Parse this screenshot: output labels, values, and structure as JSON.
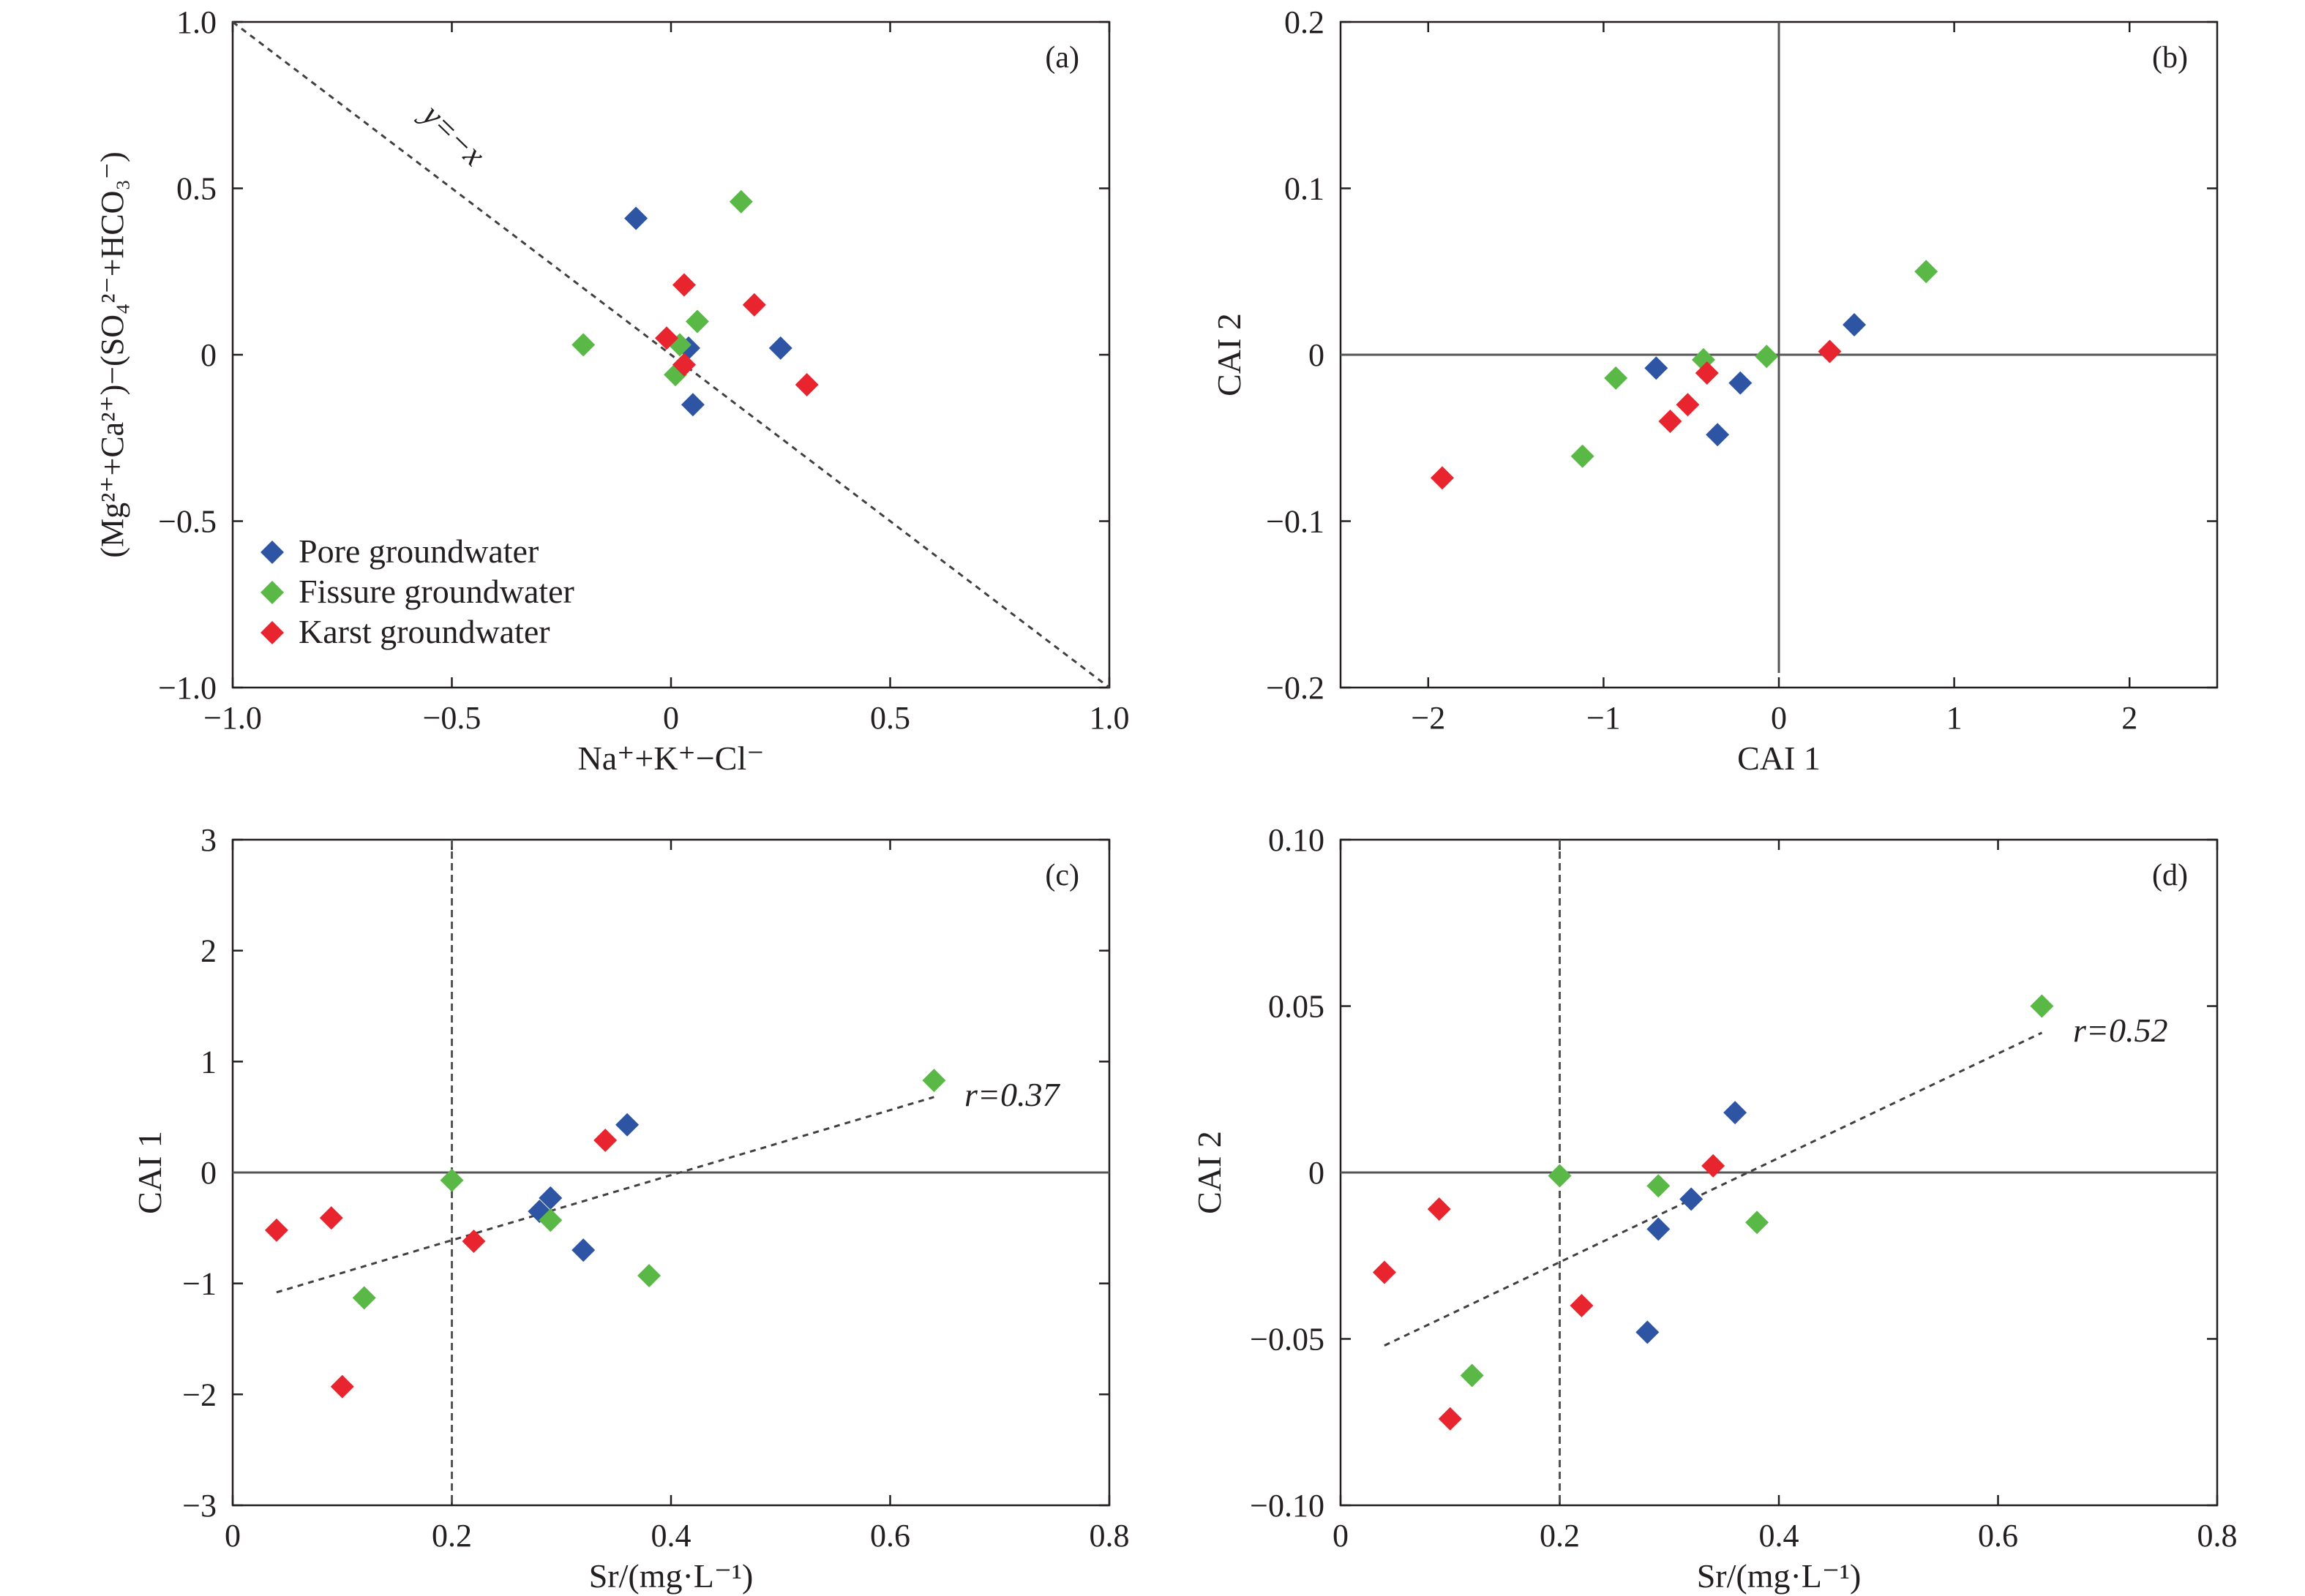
{
  "legend": [
    {
      "label": "Pore groundwater",
      "color": "#2e55a4"
    },
    {
      "label": "Fissure groundwater",
      "color": "#5ab946"
    },
    {
      "label": "Karst groundwater",
      "color": "#e8252e"
    }
  ],
  "panels": {
    "a": {
      "tag": "(a)",
      "xlabel": "Na⁺+K⁺−Cl⁻",
      "ylabel": "(Mg²⁺+Ca²⁺)−(SO₄²⁻+HCO₃⁻)",
      "ref_line_label": "y=−x",
      "xticks": [
        "−1.0",
        "−0.5",
        "0",
        "0.5",
        "1.0"
      ],
      "yticks": [
        "−1.0",
        "−0.5",
        "0",
        "0.5",
        "1.0"
      ]
    },
    "b": {
      "tag": "(b)",
      "xlabel": "CAI 1",
      "ylabel": "CAI 2",
      "xticks": [
        "−2",
        "−1",
        "0",
        "1",
        "2"
      ],
      "yticks": [
        "−0.2",
        "−0.1",
        "0",
        "0.1",
        "0.2"
      ]
    },
    "c": {
      "tag": "(c)",
      "xlabel": "Sr/(mg·L⁻¹)",
      "ylabel": "CAI 1",
      "r_label": "r=0.37",
      "xticks": [
        "0",
        "0.2",
        "0.4",
        "0.6",
        "0.8"
      ],
      "yticks": [
        "−3",
        "−2",
        "−1",
        "0",
        "1",
        "2",
        "3"
      ]
    },
    "d": {
      "tag": "(d)",
      "xlabel": "Sr/(mg·L⁻¹)",
      "ylabel": "CAI 2",
      "r_label": "r=0.52",
      "xticks": [
        "0",
        "0.2",
        "0.4",
        "0.6",
        "0.8"
      ],
      "yticks": [
        "−0.10",
        "−0.05",
        "0",
        "0.05",
        "0.10"
      ]
    }
  },
  "chart_data": [
    {
      "panel": "a",
      "type": "scatter",
      "xlim": [
        -1.0,
        1.0
      ],
      "ylim": [
        -1.0,
        1.0
      ],
      "reference_line": {
        "type": "dashed",
        "from": [
          -1.0,
          1.0
        ],
        "to": [
          1.0,
          -1.0
        ]
      },
      "series": [
        {
          "name": "Pore groundwater",
          "points": [
            [
              -0.08,
              0.41
            ],
            [
              0.04,
              0.02
            ],
            [
              0.05,
              -0.15
            ],
            [
              0.25,
              0.02
            ]
          ]
        },
        {
          "name": "Fissure groundwater",
          "points": [
            [
              -0.2,
              0.03
            ],
            [
              0.16,
              0.46
            ],
            [
              0.06,
              0.1
            ],
            [
              0.01,
              -0.06
            ],
            [
              0.02,
              0.03
            ]
          ]
        },
        {
          "name": "Karst groundwater",
          "points": [
            [
              0.03,
              0.21
            ],
            [
              0.19,
              0.15
            ],
            [
              -0.01,
              0.05
            ],
            [
              0.03,
              -0.03
            ],
            [
              0.31,
              -0.09
            ]
          ]
        }
      ]
    },
    {
      "panel": "b",
      "type": "scatter",
      "xlim": [
        -2.5,
        2.5
      ],
      "ylim": [
        -0.2,
        0.2
      ],
      "axis_lines": {
        "x0": true,
        "y0": true
      },
      "series": [
        {
          "name": "Pore groundwater",
          "points": [
            [
              -0.7,
              -0.008
            ],
            [
              -0.35,
              -0.048
            ],
            [
              -0.22,
              -0.017
            ],
            [
              0.43,
              0.018
            ]
          ]
        },
        {
          "name": "Fissure groundwater",
          "points": [
            [
              -1.12,
              -0.061
            ],
            [
              -0.93,
              -0.014
            ],
            [
              -0.43,
              -0.003
            ],
            [
              -0.07,
              -0.001
            ],
            [
              0.84,
              0.05
            ]
          ]
        },
        {
          "name": "Karst groundwater",
          "points": [
            [
              -1.92,
              -0.074
            ],
            [
              -0.62,
              -0.04
            ],
            [
              -0.52,
              -0.03
            ],
            [
              -0.41,
              -0.011
            ],
            [
              0.29,
              0.002
            ]
          ]
        }
      ]
    },
    {
      "panel": "c",
      "type": "scatter",
      "xlim": [
        0,
        0.8
      ],
      "ylim": [
        -3,
        3
      ],
      "vline": 0.2,
      "hline": 0,
      "fit_line": {
        "from": [
          0.04,
          -1.08
        ],
        "to": [
          0.64,
          0.68
        ]
      },
      "series": [
        {
          "name": "Pore groundwater",
          "points": [
            [
              0.28,
              -0.35
            ],
            [
              0.29,
              -0.23
            ],
            [
              0.32,
              -0.7
            ],
            [
              0.36,
              0.43
            ]
          ]
        },
        {
          "name": "Fissure groundwater",
          "points": [
            [
              0.12,
              -1.13
            ],
            [
              0.2,
              -0.07
            ],
            [
              0.29,
              -0.43
            ],
            [
              0.38,
              -0.93
            ],
            [
              0.64,
              0.83
            ]
          ]
        },
        {
          "name": "Karst groundwater",
          "points": [
            [
              0.04,
              -0.52
            ],
            [
              0.09,
              -0.41
            ],
            [
              0.1,
              -1.93
            ],
            [
              0.22,
              -0.62
            ],
            [
              0.34,
              0.29
            ]
          ]
        }
      ]
    },
    {
      "panel": "d",
      "type": "scatter",
      "xlim": [
        0,
        0.8
      ],
      "ylim": [
        -0.1,
        0.1
      ],
      "vline": 0.2,
      "hline": 0,
      "fit_line": {
        "from": [
          0.04,
          -0.052
        ],
        "to": [
          0.64,
          0.042
        ]
      },
      "series": [
        {
          "name": "Pore groundwater",
          "points": [
            [
              0.28,
              -0.048
            ],
            [
              0.29,
              -0.017
            ],
            [
              0.32,
              -0.008
            ],
            [
              0.36,
              0.018
            ]
          ]
        },
        {
          "name": "Fissure groundwater",
          "points": [
            [
              0.12,
              -0.061
            ],
            [
              0.2,
              -0.001
            ],
            [
              0.29,
              -0.004
            ],
            [
              0.38,
              -0.015
            ],
            [
              0.64,
              0.05
            ]
          ]
        },
        {
          "name": "Karst groundwater",
          "points": [
            [
              0.04,
              -0.03
            ],
            [
              0.09,
              -0.011
            ],
            [
              0.1,
              -0.074
            ],
            [
              0.22,
              -0.04
            ],
            [
              0.34,
              0.002
            ]
          ]
        }
      ]
    }
  ]
}
